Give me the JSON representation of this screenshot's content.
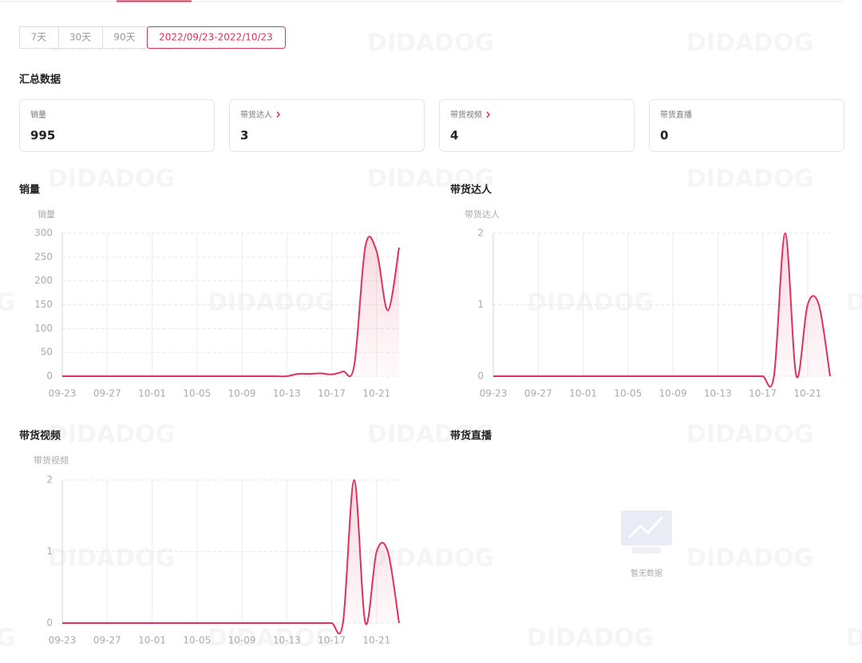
{
  "watermark": "DIDADOG",
  "date_filters": [
    "7天",
    "30天",
    "90天",
    "2022/09/23-2022/10/23"
  ],
  "active_date_filter": 3,
  "summary": {
    "title": "汇总数据",
    "cards": [
      {
        "label": "销量",
        "value": 995,
        "link": false
      },
      {
        "label": "带货达人",
        "value": 3,
        "link": true
      },
      {
        "label": "带货视频",
        "value": 4,
        "link": true
      },
      {
        "label": "带货直播",
        "value": 0,
        "link": false
      }
    ]
  },
  "chart_data": [
    {
      "type": "line",
      "title": "销量",
      "y_label": "销量",
      "color": "#e0315b",
      "categories": [
        "09-23",
        null,
        null,
        null,
        "09-27",
        null,
        null,
        null,
        "10-01",
        null,
        null,
        null,
        "10-05",
        null,
        null,
        null,
        "10-09",
        null,
        null,
        null,
        "10-13",
        null,
        null,
        null,
        "10-17",
        null,
        null,
        null,
        "10-21",
        null,
        null
      ],
      "values": [
        0,
        0,
        0,
        0,
        0,
        0,
        0,
        0,
        0,
        0,
        0,
        0,
        0,
        0,
        0,
        0,
        0,
        0,
        0,
        0,
        0,
        5,
        5,
        6,
        4,
        10,
        22,
        273,
        262,
        138,
        270
      ],
      "ylim": [
        0,
        300
      ],
      "yticks": [
        0,
        50,
        100,
        150,
        200,
        250,
        300
      ],
      "grid": true
    },
    {
      "type": "line",
      "title": "带货达人",
      "y_label": "带货达人",
      "color": "#e0315b",
      "categories": [
        "09-23",
        null,
        null,
        null,
        "09-27",
        null,
        null,
        null,
        "10-01",
        null,
        null,
        null,
        "10-05",
        null,
        null,
        null,
        "10-09",
        null,
        null,
        null,
        "10-13",
        null,
        null,
        null,
        "10-17",
        null,
        null,
        null,
        "10-21",
        null,
        null
      ],
      "values": [
        0,
        0,
        0,
        0,
        0,
        0,
        0,
        0,
        0,
        0,
        0,
        0,
        0,
        0,
        0,
        0,
        0,
        0,
        0,
        0,
        0,
        0,
        0,
        0,
        0,
        0,
        2,
        0,
        1,
        1,
        0
      ],
      "ylim": [
        0,
        2
      ],
      "yticks": [
        0,
        1,
        2
      ],
      "grid": true
    },
    {
      "type": "line",
      "title": "带货视频",
      "y_label": "带货视频",
      "color": "#e0315b",
      "categories": [
        "09-23",
        null,
        null,
        null,
        "09-27",
        null,
        null,
        null,
        "10-01",
        null,
        null,
        null,
        "10-05",
        null,
        null,
        null,
        "10-09",
        null,
        null,
        null,
        "10-13",
        null,
        null,
        null,
        "10-17",
        null,
        null,
        null,
        "10-21",
        null,
        null
      ],
      "values": [
        0,
        0,
        0,
        0,
        0,
        0,
        0,
        0,
        0,
        0,
        0,
        0,
        0,
        0,
        0,
        0,
        0,
        0,
        0,
        0,
        0,
        0,
        0,
        0,
        0,
        0,
        2,
        0,
        1,
        1,
        0
      ],
      "ylim": [
        0,
        2
      ],
      "yticks": [
        0,
        1,
        2
      ],
      "grid": true
    },
    {
      "type": "empty",
      "title": "带货直播",
      "no_data_text": "暂无数据"
    }
  ]
}
